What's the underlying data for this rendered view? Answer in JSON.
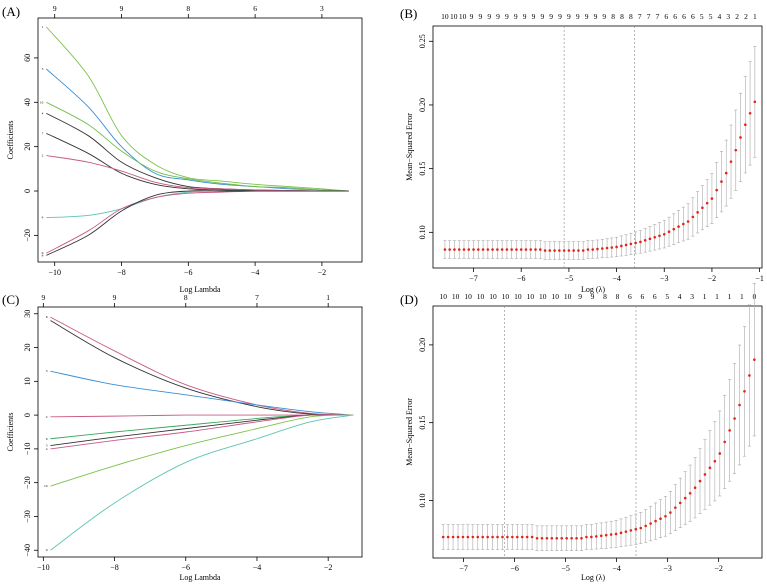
{
  "panels": [
    {
      "id": "A",
      "label": "(A)",
      "chart_data": {
        "type": "line",
        "xlabel": "Log Lambda",
        "ylabel": "Coefficients",
        "xlim": [
          -10.5,
          -0.8
        ],
        "ylim": [
          -32,
          78
        ],
        "x_ticks": [
          -10,
          -8,
          -6,
          -4,
          -2
        ],
        "y_ticks": [
          -20,
          0,
          20,
          40,
          60
        ],
        "top_ticks": [
          {
            "x": -10,
            "label": "9"
          },
          {
            "x": -8,
            "label": "9"
          },
          {
            "x": -6,
            "label": "8"
          },
          {
            "x": -4,
            "label": "6"
          },
          {
            "x": -2,
            "label": "3"
          }
        ],
        "series": [
          {
            "color": "#7cc24a",
            "index": "1",
            "points": [
              [
                -10.25,
                74
              ],
              [
                -9,
                52
              ],
              [
                -8,
                25
              ],
              [
                -7,
                12
              ],
              [
                -6,
                6
              ],
              [
                -5,
                4.5
              ],
              [
                -4,
                3
              ],
              [
                -3,
                2
              ],
              [
                -2,
                1
              ],
              [
                -1.2,
                0
              ]
            ]
          },
          {
            "color": "#3a8fd4",
            "index": "3",
            "points": [
              [
                -10.25,
                55
              ],
              [
                -9,
                38
              ],
              [
                -8,
                20
              ],
              [
                -7,
                8
              ],
              [
                -6,
                5
              ],
              [
                -5,
                3
              ],
              [
                -4,
                2
              ],
              [
                -3,
                1
              ],
              [
                -2,
                0.5
              ],
              [
                -1.2,
                0
              ]
            ]
          },
          {
            "color": "#6fbf4a",
            "index": "10",
            "points": [
              [
                -10.25,
                40
              ],
              [
                -9,
                30
              ],
              [
                -8,
                18
              ],
              [
                -7,
                9
              ],
              [
                -6,
                5.5
              ],
              [
                -5,
                3.5
              ],
              [
                -4,
                2
              ],
              [
                -3,
                1.5
              ],
              [
                -2,
                0.5
              ],
              [
                -1.2,
                0
              ]
            ]
          },
          {
            "color": "#333333",
            "index": "4",
            "points": [
              [
                -10.25,
                35
              ],
              [
                -9,
                25
              ],
              [
                -8,
                13
              ],
              [
                -7,
                6
              ],
              [
                -6,
                2
              ],
              [
                -5,
                1
              ],
              [
                -4,
                0.5
              ],
              [
                -3,
                0.2
              ],
              [
                -2,
                0
              ],
              [
                -1.2,
                0
              ]
            ]
          },
          {
            "color": "#333333",
            "index": "7",
            "points": [
              [
                -10.25,
                26
              ],
              [
                -9,
                17
              ],
              [
                -8,
                8
              ],
              [
                -7,
                3
              ],
              [
                -6,
                1
              ],
              [
                -5,
                0.5
              ],
              [
                -4,
                0.2
              ],
              [
                -3,
                0
              ],
              [
                -2,
                0
              ],
              [
                -1.2,
                0
              ]
            ]
          },
          {
            "color": "#c95a84",
            "index": "2",
            "points": [
              [
                -10.25,
                16
              ],
              [
                -9,
                13
              ],
              [
                -8,
                9
              ],
              [
                -7,
                4
              ],
              [
                -6,
                1.5
              ],
              [
                -5,
                1
              ],
              [
                -4,
                0.5
              ],
              [
                -3,
                0.2
              ],
              [
                -2,
                0
              ],
              [
                -1.2,
                0
              ]
            ]
          },
          {
            "color": "#5cc4b4",
            "index": "9",
            "points": [
              [
                -10.25,
                -12
              ],
              [
                -9,
                -11
              ],
              [
                -8,
                -8
              ],
              [
                -7,
                -3
              ],
              [
                -6,
                -0.5
              ],
              [
                -5,
                0
              ],
              [
                -4,
                0
              ],
              [
                -3,
                0
              ],
              [
                -2,
                0
              ],
              [
                -1.2,
                0
              ]
            ]
          },
          {
            "color": "#c95a84",
            "index": "6",
            "points": [
              [
                -10.25,
                -28
              ],
              [
                -9,
                -18
              ],
              [
                -8,
                -8
              ],
              [
                -7,
                -3
              ],
              [
                -6,
                -1
              ],
              [
                -5,
                -0.5
              ],
              [
                -4,
                0
              ],
              [
                -3,
                0
              ],
              [
                -2,
                0
              ],
              [
                -1.2,
                0
              ]
            ]
          },
          {
            "color": "#333333",
            "index": "8",
            "points": [
              [
                -10.25,
                -29
              ],
              [
                -9,
                -20
              ],
              [
                -8,
                -9
              ],
              [
                -7,
                -2
              ],
              [
                -6,
                0
              ],
              [
                -5,
                0
              ],
              [
                -4,
                0
              ],
              [
                -3,
                0
              ],
              [
                -2,
                0
              ],
              [
                -1.2,
                0
              ]
            ]
          }
        ]
      }
    },
    {
      "id": "B",
      "label": "(B)",
      "chart_data": {
        "type": "scatter",
        "xlabel": "Log (λ)",
        "ylabel": "Mean−Squared Error",
        "xlim": [
          -7.85,
          -0.95
        ],
        "ylim": [
          0.072,
          0.262
        ],
        "x_ticks": [
          -7,
          -6,
          -5,
          -4,
          -3,
          -2,
          -1
        ],
        "y_ticks": [
          0.1,
          0.15,
          0.2,
          0.25
        ],
        "top_labels": [
          "10",
          "10",
          "10",
          "9",
          "9",
          "9",
          "9",
          "9",
          "9",
          "9",
          "9",
          "9",
          "9",
          "9",
          "9",
          "9",
          "9",
          "9",
          "9",
          "8",
          "8",
          "8",
          "7",
          "7",
          "7",
          "6",
          "6",
          "6",
          "6",
          "5",
          "5",
          "4",
          "3",
          "2",
          "2",
          "1"
        ],
        "vlines": [
          -5.1,
          -3.62
        ],
        "x_start": -7.6,
        "x_end": -1.1,
        "n_points": 66,
        "base_mse": 0.0865,
        "err_halfwidth": 0.007,
        "rise": [
          [
            -4.5,
            0.0
          ],
          [
            -4,
            0.002
          ],
          [
            -3.5,
            0.006
          ],
          [
            -3,
            0.012
          ],
          [
            -2.5,
            0.022
          ],
          [
            -2,
            0.04
          ],
          [
            -1.7,
            0.06
          ],
          [
            -1.5,
            0.078
          ],
          [
            -1.3,
            0.098
          ],
          [
            -1.1,
            0.116
          ]
        ]
      }
    },
    {
      "id": "C",
      "label": "(C)",
      "chart_data": {
        "type": "line",
        "xlabel": "Log Lambda",
        "ylabel": "Coefficients",
        "xlim": [
          -10.15,
          -1.05
        ],
        "ylim": [
          -42,
          32
        ],
        "x_ticks": [
          -10,
          -8,
          -6,
          -4,
          -2
        ],
        "y_ticks": [
          -40,
          -30,
          -20,
          -10,
          0,
          10,
          20,
          30
        ],
        "top_ticks": [
          {
            "x": -10,
            "label": "9"
          },
          {
            "x": -8,
            "label": "9"
          },
          {
            "x": -6,
            "label": "8"
          },
          {
            "x": -4,
            "label": "7"
          },
          {
            "x": -2,
            "label": "1"
          }
        ],
        "series": [
          {
            "color": "#c95a84",
            "index": "8",
            "points": [
              [
                -9.8,
                29
              ],
              [
                -8,
                19
              ],
              [
                -6,
                9
              ],
              [
                -4,
                3
              ],
              [
                -2.5,
                0.5
              ],
              [
                -1.3,
                0
              ]
            ]
          },
          {
            "color": "#333333",
            "index": "",
            "points": [
              [
                -9.8,
                28
              ],
              [
                -8,
                17
              ],
              [
                -6,
                8
              ],
              [
                -4,
                2.5
              ],
              [
                -2.5,
                0.3
              ],
              [
                -1.3,
                0
              ]
            ]
          },
          {
            "color": "#3a8fd4",
            "index": "3",
            "points": [
              [
                -9.8,
                13
              ],
              [
                -8,
                9
              ],
              [
                -6,
                6
              ],
              [
                -4,
                3
              ],
              [
                -2.5,
                1
              ],
              [
                -1.3,
                0
              ]
            ]
          },
          {
            "color": "#c95a84",
            "index": "2",
            "points": [
              [
                -9.8,
                -0.5
              ],
              [
                -8,
                -0.3
              ],
              [
                -6,
                0
              ],
              [
                -4,
                0
              ],
              [
                -2.5,
                0
              ],
              [
                -1.3,
                0
              ]
            ]
          },
          {
            "color": "#3aa85a",
            "index": "6",
            "points": [
              [
                -9.8,
                -7
              ],
              [
                -8,
                -5
              ],
              [
                -6,
                -3
              ],
              [
                -4,
                -1
              ],
              [
                -2.5,
                0
              ],
              [
                -1.3,
                0
              ]
            ]
          },
          {
            "color": "#333333",
            "index": "5",
            "points": [
              [
                -9.8,
                -9
              ],
              [
                -8,
                -6.5
              ],
              [
                -6,
                -4
              ],
              [
                -4,
                -1.5
              ],
              [
                -2.5,
                0
              ],
              [
                -1.3,
                0
              ]
            ]
          },
          {
            "color": "#c95a84",
            "index": "4",
            "points": [
              [
                -9.8,
                -10
              ],
              [
                -8,
                -7.5
              ],
              [
                -6,
                -5
              ],
              [
                -4,
                -2
              ],
              [
                -2.5,
                0
              ],
              [
                -1.3,
                0
              ]
            ]
          },
          {
            "color": "#7cc24a",
            "index": "10",
            "points": [
              [
                -9.8,
                -21
              ],
              [
                -8,
                -15
              ],
              [
                -6,
                -9
              ],
              [
                -4,
                -4
              ],
              [
                -2.5,
                -0.5
              ],
              [
                -1.3,
                0
              ]
            ]
          },
          {
            "color": "#5cc4b4",
            "index": "9",
            "points": [
              [
                -9.8,
                -40
              ],
              [
                -8,
                -26
              ],
              [
                -6,
                -14
              ],
              [
                -4,
                -7
              ],
              [
                -2.5,
                -2
              ],
              [
                -1.3,
                0
              ]
            ]
          }
        ]
      }
    },
    {
      "id": "D",
      "label": "(D)",
      "chart_data": {
        "type": "scatter",
        "xlabel": "Log (λ)",
        "ylabel": "Mean−Squared Error",
        "xlim": [
          -7.6,
          -1.15
        ],
        "ylim": [
          0.063,
          0.225
        ],
        "x_ticks": [
          -7,
          -6,
          -5,
          -4,
          -3,
          -2
        ],
        "y_ticks": [
          0.1,
          0.15,
          0.2
        ],
        "top_labels": [
          "10",
          "10",
          "10",
          "10",
          "10",
          "10",
          "10",
          "10",
          "10",
          "10",
          "10",
          "9",
          "9",
          "8",
          "8",
          "6",
          "6",
          "6",
          "5",
          "4",
          "3",
          "1",
          "1",
          "1",
          "1",
          "0"
        ],
        "vlines": [
          -6.2,
          -3.62
        ],
        "x_start": -7.4,
        "x_end": -1.3,
        "n_points": 64,
        "base_mse": 0.0765,
        "err_halfwidth": 0.008,
        "rise": [
          [
            -4.5,
            0.0
          ],
          [
            -4,
            0.002
          ],
          [
            -3.5,
            0.006
          ],
          [
            -3,
            0.014
          ],
          [
            -2.5,
            0.03
          ],
          [
            -2,
            0.052
          ],
          [
            -1.7,
            0.075
          ],
          [
            -1.5,
            0.093
          ],
          [
            -1.3,
            0.114
          ]
        ]
      }
    }
  ]
}
